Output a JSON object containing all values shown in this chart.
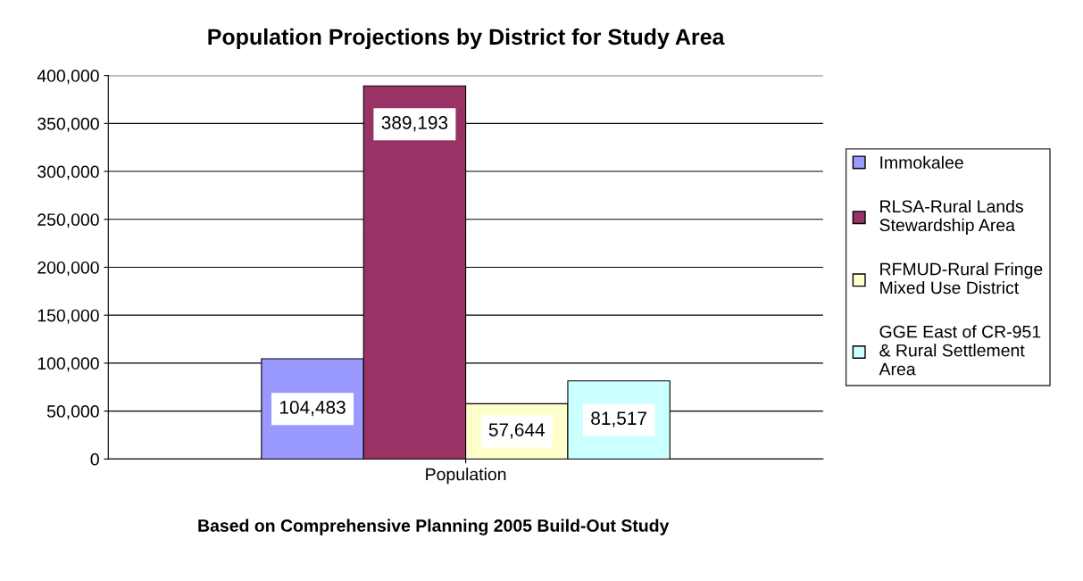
{
  "chart_data": {
    "type": "bar",
    "title": "Population Projections by District for Study Area",
    "categories": [
      "Population"
    ],
    "series": [
      {
        "name": "Immokalee",
        "color": "#9999ff",
        "values": [
          104483
        ],
        "value_labels": [
          "104,483"
        ]
      },
      {
        "name": "RLSA-Rural Lands Stewardship Area",
        "color": "#993366",
        "values": [
          389193
        ],
        "value_labels": [
          "389,193"
        ]
      },
      {
        "name": "RFMUD-Rural Fringe Mixed Use District",
        "color": "#ffffcc",
        "values": [
          57644
        ],
        "value_labels": [
          "57,644"
        ]
      },
      {
        "name": "GGE East of CR-951 & Rural Settlement Area",
        "color": "#ccffff",
        "values": [
          81517
        ],
        "value_labels": [
          "81,517"
        ]
      }
    ],
    "ylim": [
      0,
      400000
    ],
    "yticks": [
      {
        "value": 0,
        "label": "0"
      },
      {
        "value": 50000,
        "label": "50,000"
      },
      {
        "value": 100000,
        "label": "100,000"
      },
      {
        "value": 150000,
        "label": "150,000"
      },
      {
        "value": 200000,
        "label": "200,000"
      },
      {
        "value": 250000,
        "label": "250,000"
      },
      {
        "value": 300000,
        "label": "300,000"
      },
      {
        "value": 350000,
        "label": "350,000"
      },
      {
        "value": 400000,
        "label": "400,000"
      }
    ],
    "grid": "y",
    "legend": "right",
    "annotations": [
      "Based on Comprehensive Planning 2005 Build-Out Study"
    ]
  }
}
